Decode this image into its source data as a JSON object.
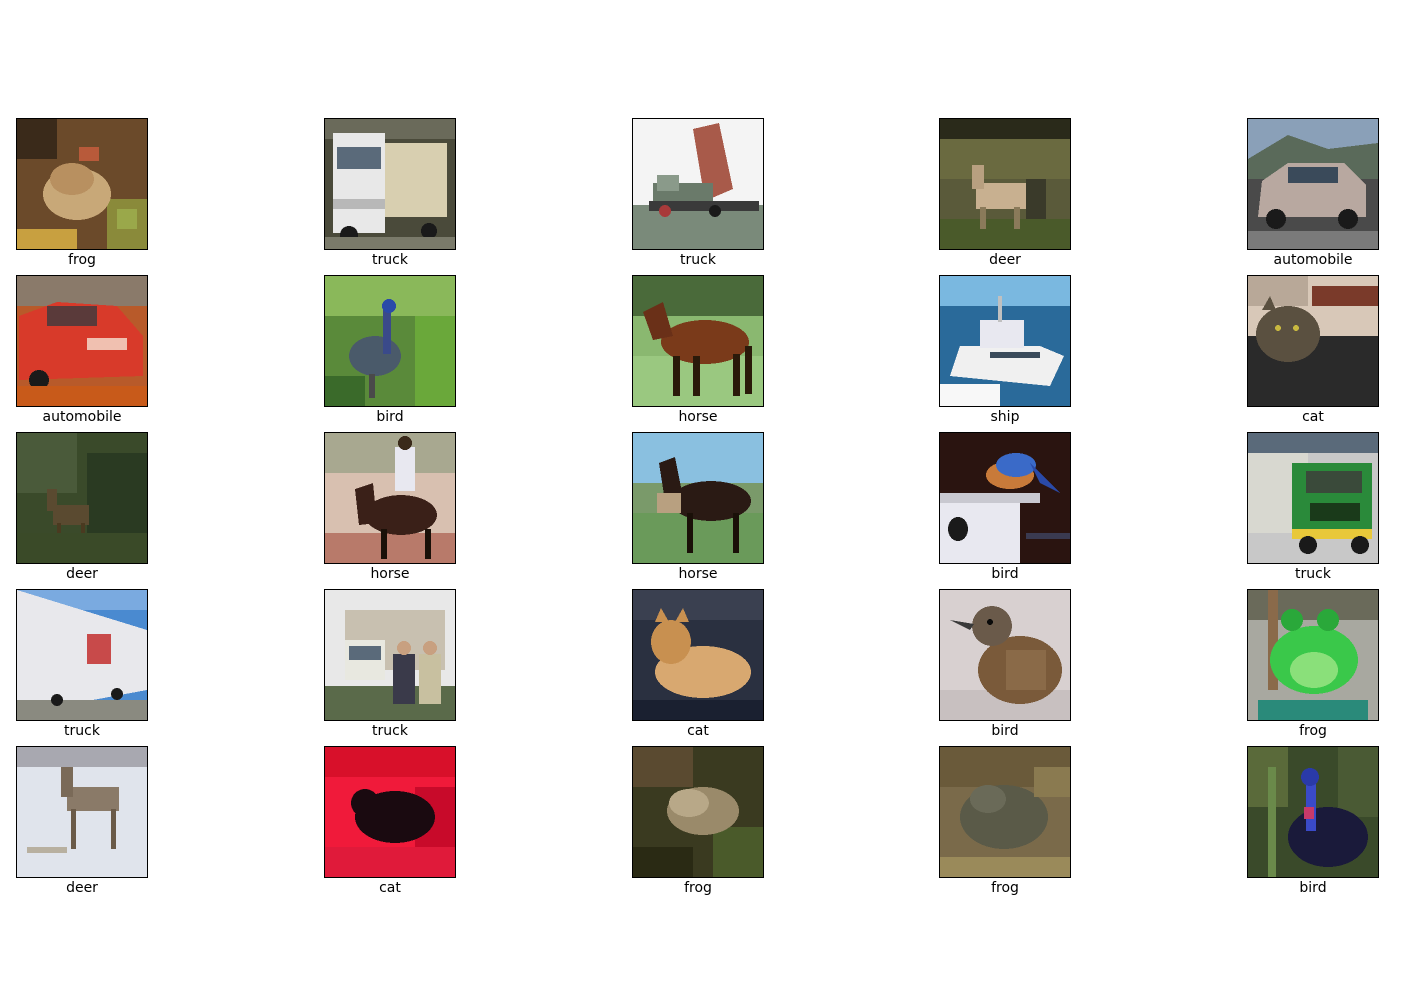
{
  "figure": {
    "images": [
      {
        "label": "frog",
        "scene": "frog"
      },
      {
        "label": "truck",
        "scene": "truck-white"
      },
      {
        "label": "truck",
        "scene": "dump-truck"
      },
      {
        "label": "deer",
        "scene": "deer-field"
      },
      {
        "label": "automobile",
        "scene": "car-silver"
      },
      {
        "label": "automobile",
        "scene": "car-red"
      },
      {
        "label": "bird",
        "scene": "bird-peacock"
      },
      {
        "label": "horse",
        "scene": "horse-brown"
      },
      {
        "label": "ship",
        "scene": "ship"
      },
      {
        "label": "cat",
        "scene": "cat-dark"
      },
      {
        "label": "deer",
        "scene": "deer-forest"
      },
      {
        "label": "horse",
        "scene": "horse-rider"
      },
      {
        "label": "horse",
        "scene": "horse-dark"
      },
      {
        "label": "bird",
        "scene": "bird-blue"
      },
      {
        "label": "truck",
        "scene": "truck-green"
      },
      {
        "label": "truck",
        "scene": "truck-trailer"
      },
      {
        "label": "truck",
        "scene": "truck-people"
      },
      {
        "label": "cat",
        "scene": "cat-orange"
      },
      {
        "label": "bird",
        "scene": "bird-sparrow"
      },
      {
        "label": "frog",
        "scene": "frog-green"
      },
      {
        "label": "deer",
        "scene": "deer-snow"
      },
      {
        "label": "cat",
        "scene": "cat-red"
      },
      {
        "label": "frog",
        "scene": "frog-ground"
      },
      {
        "label": "frog",
        "scene": "frog-toad"
      },
      {
        "label": "bird",
        "scene": "bird-cassowary"
      }
    ]
  }
}
